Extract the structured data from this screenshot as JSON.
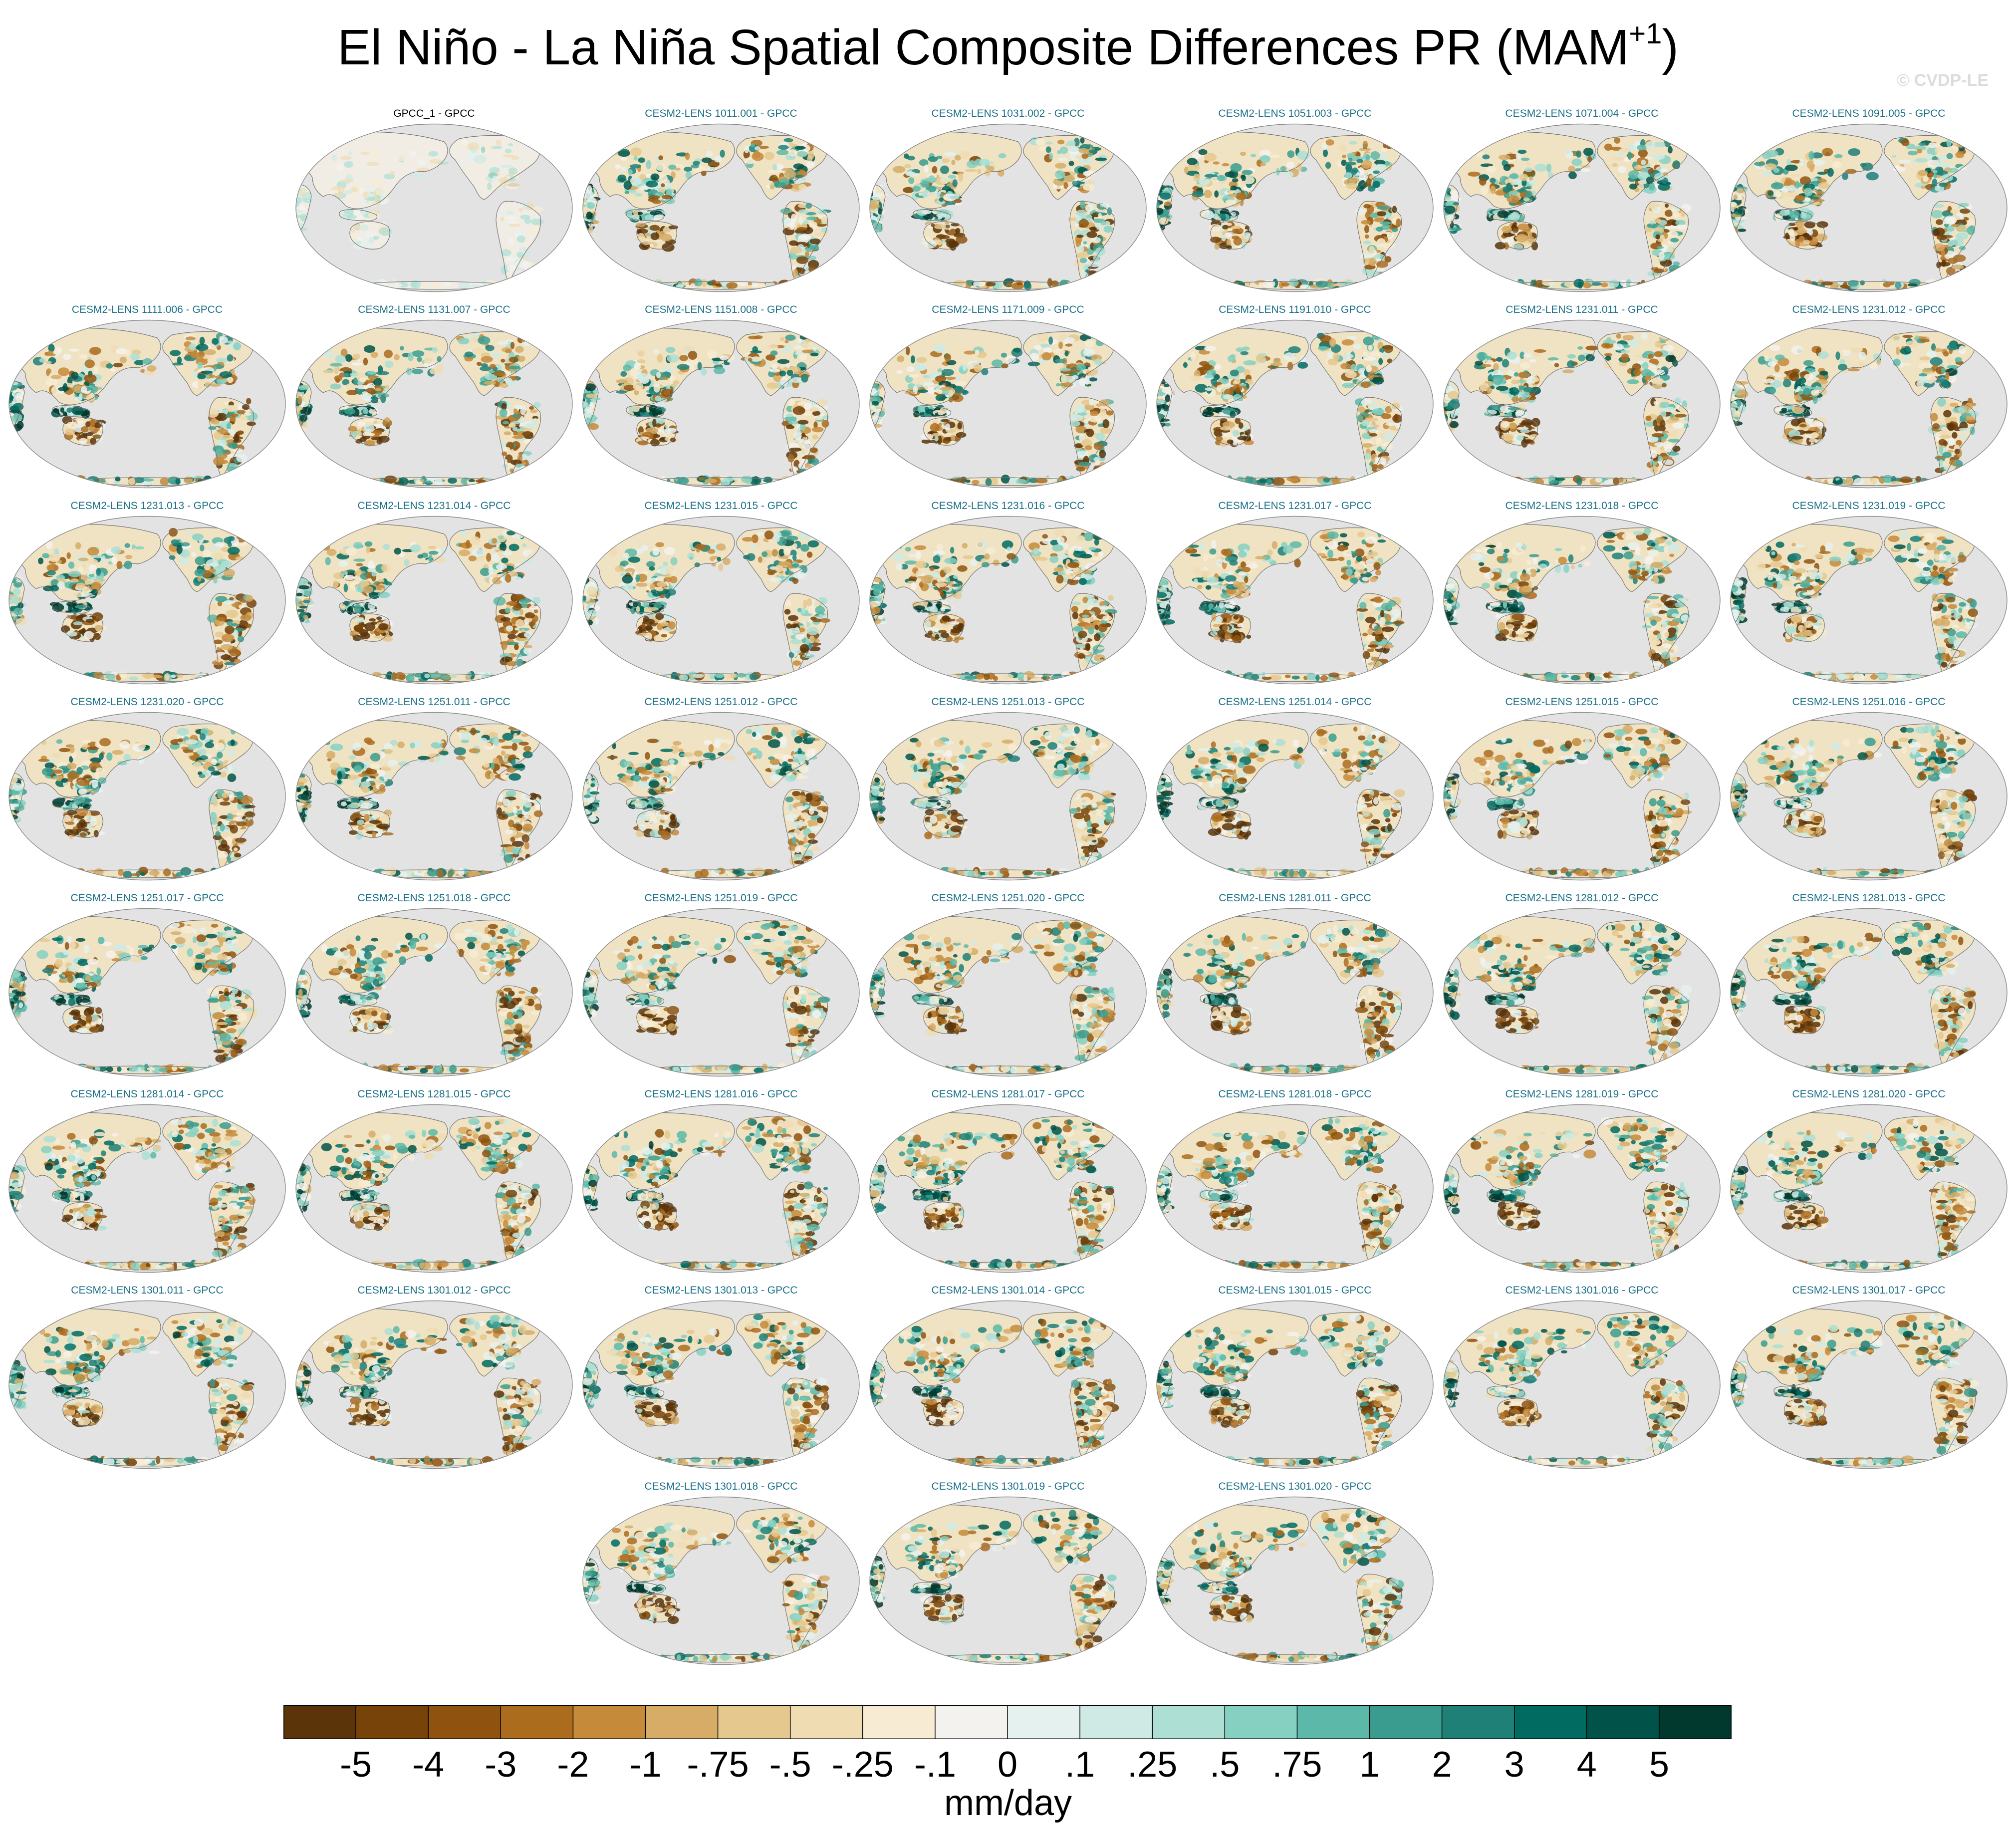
{
  "title": {
    "main": "El Niño - La Niña Spatial Composite Differences PR (MAM",
    "superscript": "+1",
    "close": ")"
  },
  "watermark": "© CVDP-LE",
  "colors": {
    "reference_title": "#000000",
    "member_title": "#1a6f86",
    "ocean": "#e3e3e3",
    "coast": "#777777"
  },
  "chart_data": {
    "type": "heatmap",
    "projection": "Robinson, Pacific-centered global map",
    "colorbar": {
      "label": "mm/day",
      "ticks": [
        "-5",
        "-4",
        "-3",
        "-2",
        "-1",
        "-.75",
        "-.5",
        "-.25",
        "-.1",
        "0",
        ".1",
        ".25",
        ".5",
        ".75",
        "1",
        "2",
        "3",
        "4",
        "5"
      ],
      "colors": [
        "#5b3409",
        "#774309",
        "#8f530f",
        "#ab6c1e",
        "#c68a3b",
        "#d6ac66",
        "#e5c88e",
        "#f0dcb3",
        "#f7ecd3",
        "#f4f2ee",
        "#e5f1ef",
        "#cfeae4",
        "#addfd5",
        "#86d0c2",
        "#5cb8a8",
        "#3a9c8e",
        "#1f8078",
        "#016b61",
        "#015349",
        "#01392f"
      ]
    },
    "panels": [
      {
        "label": "GPCC_1 - GPCC",
        "kind": "reference"
      },
      {
        "label": "CESM2-LENS 1011.001 - GPCC",
        "kind": "member"
      },
      {
        "label": "CESM2-LENS 1031.002 - GPCC",
        "kind": "member"
      },
      {
        "label": "CESM2-LENS 1051.003 - GPCC",
        "kind": "member"
      },
      {
        "label": "CESM2-LENS 1071.004 - GPCC",
        "kind": "member"
      },
      {
        "label": "CESM2-LENS 1091.005 - GPCC",
        "kind": "member"
      },
      {
        "label": "CESM2-LENS 1111.006 - GPCC",
        "kind": "member"
      },
      {
        "label": "CESM2-LENS 1131.007 - GPCC",
        "kind": "member"
      },
      {
        "label": "CESM2-LENS 1151.008 - GPCC",
        "kind": "member"
      },
      {
        "label": "CESM2-LENS 1171.009 - GPCC",
        "kind": "member"
      },
      {
        "label": "CESM2-LENS 1191.010 - GPCC",
        "kind": "member"
      },
      {
        "label": "CESM2-LENS 1231.011 - GPCC",
        "kind": "member"
      },
      {
        "label": "CESM2-LENS 1231.012 - GPCC",
        "kind": "member"
      },
      {
        "label": "CESM2-LENS 1231.013 - GPCC",
        "kind": "member"
      },
      {
        "label": "CESM2-LENS 1231.014 - GPCC",
        "kind": "member"
      },
      {
        "label": "CESM2-LENS 1231.015 - GPCC",
        "kind": "member"
      },
      {
        "label": "CESM2-LENS 1231.016 - GPCC",
        "kind": "member"
      },
      {
        "label": "CESM2-LENS 1231.017 - GPCC",
        "kind": "member"
      },
      {
        "label": "CESM2-LENS 1231.018 - GPCC",
        "kind": "member"
      },
      {
        "label": "CESM2-LENS 1231.019 - GPCC",
        "kind": "member"
      },
      {
        "label": "CESM2-LENS 1231.020 - GPCC",
        "kind": "member"
      },
      {
        "label": "CESM2-LENS 1251.011 - GPCC",
        "kind": "member"
      },
      {
        "label": "CESM2-LENS 1251.012 - GPCC",
        "kind": "member"
      },
      {
        "label": "CESM2-LENS 1251.013 - GPCC",
        "kind": "member"
      },
      {
        "label": "CESM2-LENS 1251.014 - GPCC",
        "kind": "member"
      },
      {
        "label": "CESM2-LENS 1251.015 - GPCC",
        "kind": "member"
      },
      {
        "label": "CESM2-LENS 1251.016 - GPCC",
        "kind": "member"
      },
      {
        "label": "CESM2-LENS 1251.017 - GPCC",
        "kind": "member"
      },
      {
        "label": "CESM2-LENS 1251.018 - GPCC",
        "kind": "member"
      },
      {
        "label": "CESM2-LENS 1251.019 - GPCC",
        "kind": "member"
      },
      {
        "label": "CESM2-LENS 1251.020 - GPCC",
        "kind": "member"
      },
      {
        "label": "CESM2-LENS 1281.011 - GPCC",
        "kind": "member"
      },
      {
        "label": "CESM2-LENS 1281.012 - GPCC",
        "kind": "member"
      },
      {
        "label": "CESM2-LENS 1281.013 - GPCC",
        "kind": "member"
      },
      {
        "label": "CESM2-LENS 1281.014 - GPCC",
        "kind": "member"
      },
      {
        "label": "CESM2-LENS 1281.015 - GPCC",
        "kind": "member"
      },
      {
        "label": "CESM2-LENS 1281.016 - GPCC",
        "kind": "member"
      },
      {
        "label": "CESM2-LENS 1281.017 - GPCC",
        "kind": "member"
      },
      {
        "label": "CESM2-LENS 1281.018 - GPCC",
        "kind": "member"
      },
      {
        "label": "CESM2-LENS 1281.019 - GPCC",
        "kind": "member"
      },
      {
        "label": "CESM2-LENS 1281.020 - GPCC",
        "kind": "member"
      },
      {
        "label": "CESM2-LENS 1301.011 - GPCC",
        "kind": "member"
      },
      {
        "label": "CESM2-LENS 1301.012 - GPCC",
        "kind": "member"
      },
      {
        "label": "CESM2-LENS 1301.013 - GPCC",
        "kind": "member"
      },
      {
        "label": "CESM2-LENS 1301.014 - GPCC",
        "kind": "member"
      },
      {
        "label": "CESM2-LENS 1301.015 - GPCC",
        "kind": "member"
      },
      {
        "label": "CESM2-LENS 1301.016 - GPCC",
        "kind": "member"
      },
      {
        "label": "CESM2-LENS 1301.017 - GPCC",
        "kind": "member"
      },
      {
        "label": "CESM2-LENS 1301.018 - GPCC",
        "kind": "member"
      },
      {
        "label": "CESM2-LENS 1301.019 - GPCC",
        "kind": "member"
      },
      {
        "label": "CESM2-LENS 1301.020 - GPCC",
        "kind": "member"
      }
    ]
  }
}
